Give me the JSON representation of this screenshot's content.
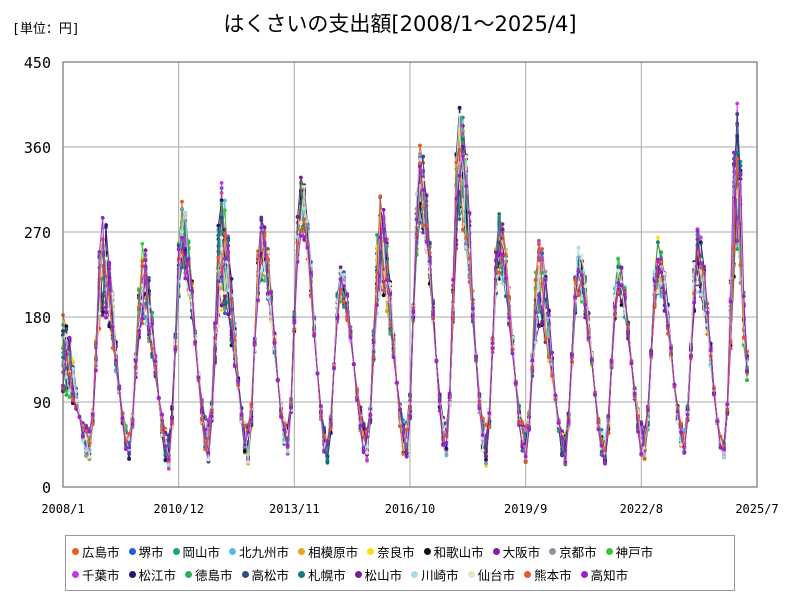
{
  "title": "はくさいの支出額[2008/1～2025/4]",
  "unit": "[単位：円]",
  "chart_data": {
    "type": "line",
    "title": "はくさいの支出額[2008/1～2025/4]",
    "unit_label": "[単位：円]",
    "ylim": [
      0,
      450
    ],
    "yticks": [
      "0",
      "90",
      "180",
      "270",
      "360",
      "450"
    ],
    "xticks": [
      "2008/1",
      "2010/12",
      "2013/11",
      "2016/10",
      "2019/9",
      "2022/8",
      "2025/7"
    ],
    "x_range": [
      "2008/1",
      "2025/7"
    ],
    "x_start_month": "2008/1",
    "x_end_month": "2025/4",
    "grid": true,
    "legend_position": "bottom",
    "seasonal_peaks": [
      {
        "date": "2009/1",
        "peak_mean": 235,
        "peak_max": 298
      },
      {
        "date": "2010/1",
        "peak_mean": 215,
        "peak_max": 268
      },
      {
        "date": "2011/1",
        "peak_mean": 265,
        "peak_max": 312
      },
      {
        "date": "2012/1",
        "peak_mean": 255,
        "peak_max": 335
      },
      {
        "date": "2013/1",
        "peak_mean": 255,
        "peak_max": 298
      },
      {
        "date": "2014/1",
        "peak_mean": 300,
        "peak_max": 342
      },
      {
        "date": "2015/1",
        "peak_mean": 215,
        "peak_max": 240
      },
      {
        "date": "2016/1",
        "peak_mean": 255,
        "peak_max": 318
      },
      {
        "date": "2017/1",
        "peak_mean": 320,
        "peak_max": 372
      },
      {
        "date": "2018/1",
        "peak_mean": 345,
        "peak_max": 422
      },
      {
        "date": "2019/1",
        "peak_mean": 255,
        "peak_max": 300
      },
      {
        "date": "2020/1",
        "peak_mean": 215,
        "peak_max": 272
      },
      {
        "date": "2021/1",
        "peak_mean": 230,
        "peak_max": 265
      },
      {
        "date": "2022/1",
        "peak_mean": 220,
        "peak_max": 248
      },
      {
        "date": "2023/1",
        "peak_mean": 235,
        "peak_max": 270
      },
      {
        "date": "2024/1",
        "peak_mean": 240,
        "peak_max": 280
      },
      {
        "date": "2025/1",
        "peak_mean": 330,
        "peak_max": 435
      }
    ],
    "seasonal_troughs": [
      {
        "date": "2008/9",
        "trough_mean": 45,
        "trough_min": 22
      },
      {
        "date": "2009/9",
        "trough_mean": 45,
        "trough_min": 25
      },
      {
        "date": "2010/9",
        "trough_mean": 40,
        "trough_min": 15
      },
      {
        "date": "2011/9",
        "trough_mean": 50,
        "trough_min": 22
      },
      {
        "date": "2012/9",
        "trough_mean": 45,
        "trough_min": 20
      },
      {
        "date": "2013/9",
        "trough_mean": 50,
        "trough_min": 32
      },
      {
        "date": "2014/9",
        "trough_mean": 40,
        "trough_min": 22
      },
      {
        "date": "2015/9",
        "trough_mean": 45,
        "trough_min": 20
      },
      {
        "date": "2016/9",
        "trough_mean": 45,
        "trough_min": 18
      },
      {
        "date": "2017/9",
        "trough_mean": 50,
        "trough_min": 28
      },
      {
        "date": "2018/9",
        "trough_mean": 45,
        "trough_min": 18
      },
      {
        "date": "2019/9",
        "trough_mean": 45,
        "trough_min": 22
      },
      {
        "date": "2020/9",
        "trough_mean": 40,
        "trough_min": 20
      },
      {
        "date": "2021/9",
        "trough_mean": 40,
        "trough_min": 22
      },
      {
        "date": "2022/9",
        "trough_mean": 45,
        "trough_min": 22
      },
      {
        "date": "2023/9",
        "trough_mean": 50,
        "trough_min": 32
      },
      {
        "date": "2024/9",
        "trough_mean": 40,
        "trough_min": 30
      }
    ],
    "series": [
      {
        "name": "広島市",
        "color": "#f05a22"
      },
      {
        "name": "堺市",
        "color": "#1e5fd6"
      },
      {
        "name": "岡山市",
        "color": "#17a67a"
      },
      {
        "name": "北九州市",
        "color": "#5ab8e8"
      },
      {
        "name": "相模原市",
        "color": "#f0a21e"
      },
      {
        "name": "奈良市",
        "color": "#f2e21a"
      },
      {
        "name": "和歌山市",
        "color": "#111111"
      },
      {
        "name": "大阪市",
        "color": "#8a1aa6"
      },
      {
        "name": "京都市",
        "color": "#8a96a2"
      },
      {
        "name": "神戸市",
        "color": "#3ac83a"
      },
      {
        "name": "千葉市",
        "color": "#c43ae0"
      },
      {
        "name": "松江市",
        "color": "#1c1c6e"
      },
      {
        "name": "徳島市",
        "color": "#2fae5a"
      },
      {
        "name": "高松市",
        "color": "#2e4c86"
      },
      {
        "name": "札幌市",
        "color": "#147a86"
      },
      {
        "name": "松山市",
        "color": "#7a1a96"
      },
      {
        "name": "川崎市",
        "color": "#a8dce8"
      },
      {
        "name": "仙台市",
        "color": "#e4e6c8"
      },
      {
        "name": "熊本市",
        "color": "#e8582e"
      },
      {
        "name": "高知市",
        "color": "#9a22d0"
      }
    ]
  }
}
